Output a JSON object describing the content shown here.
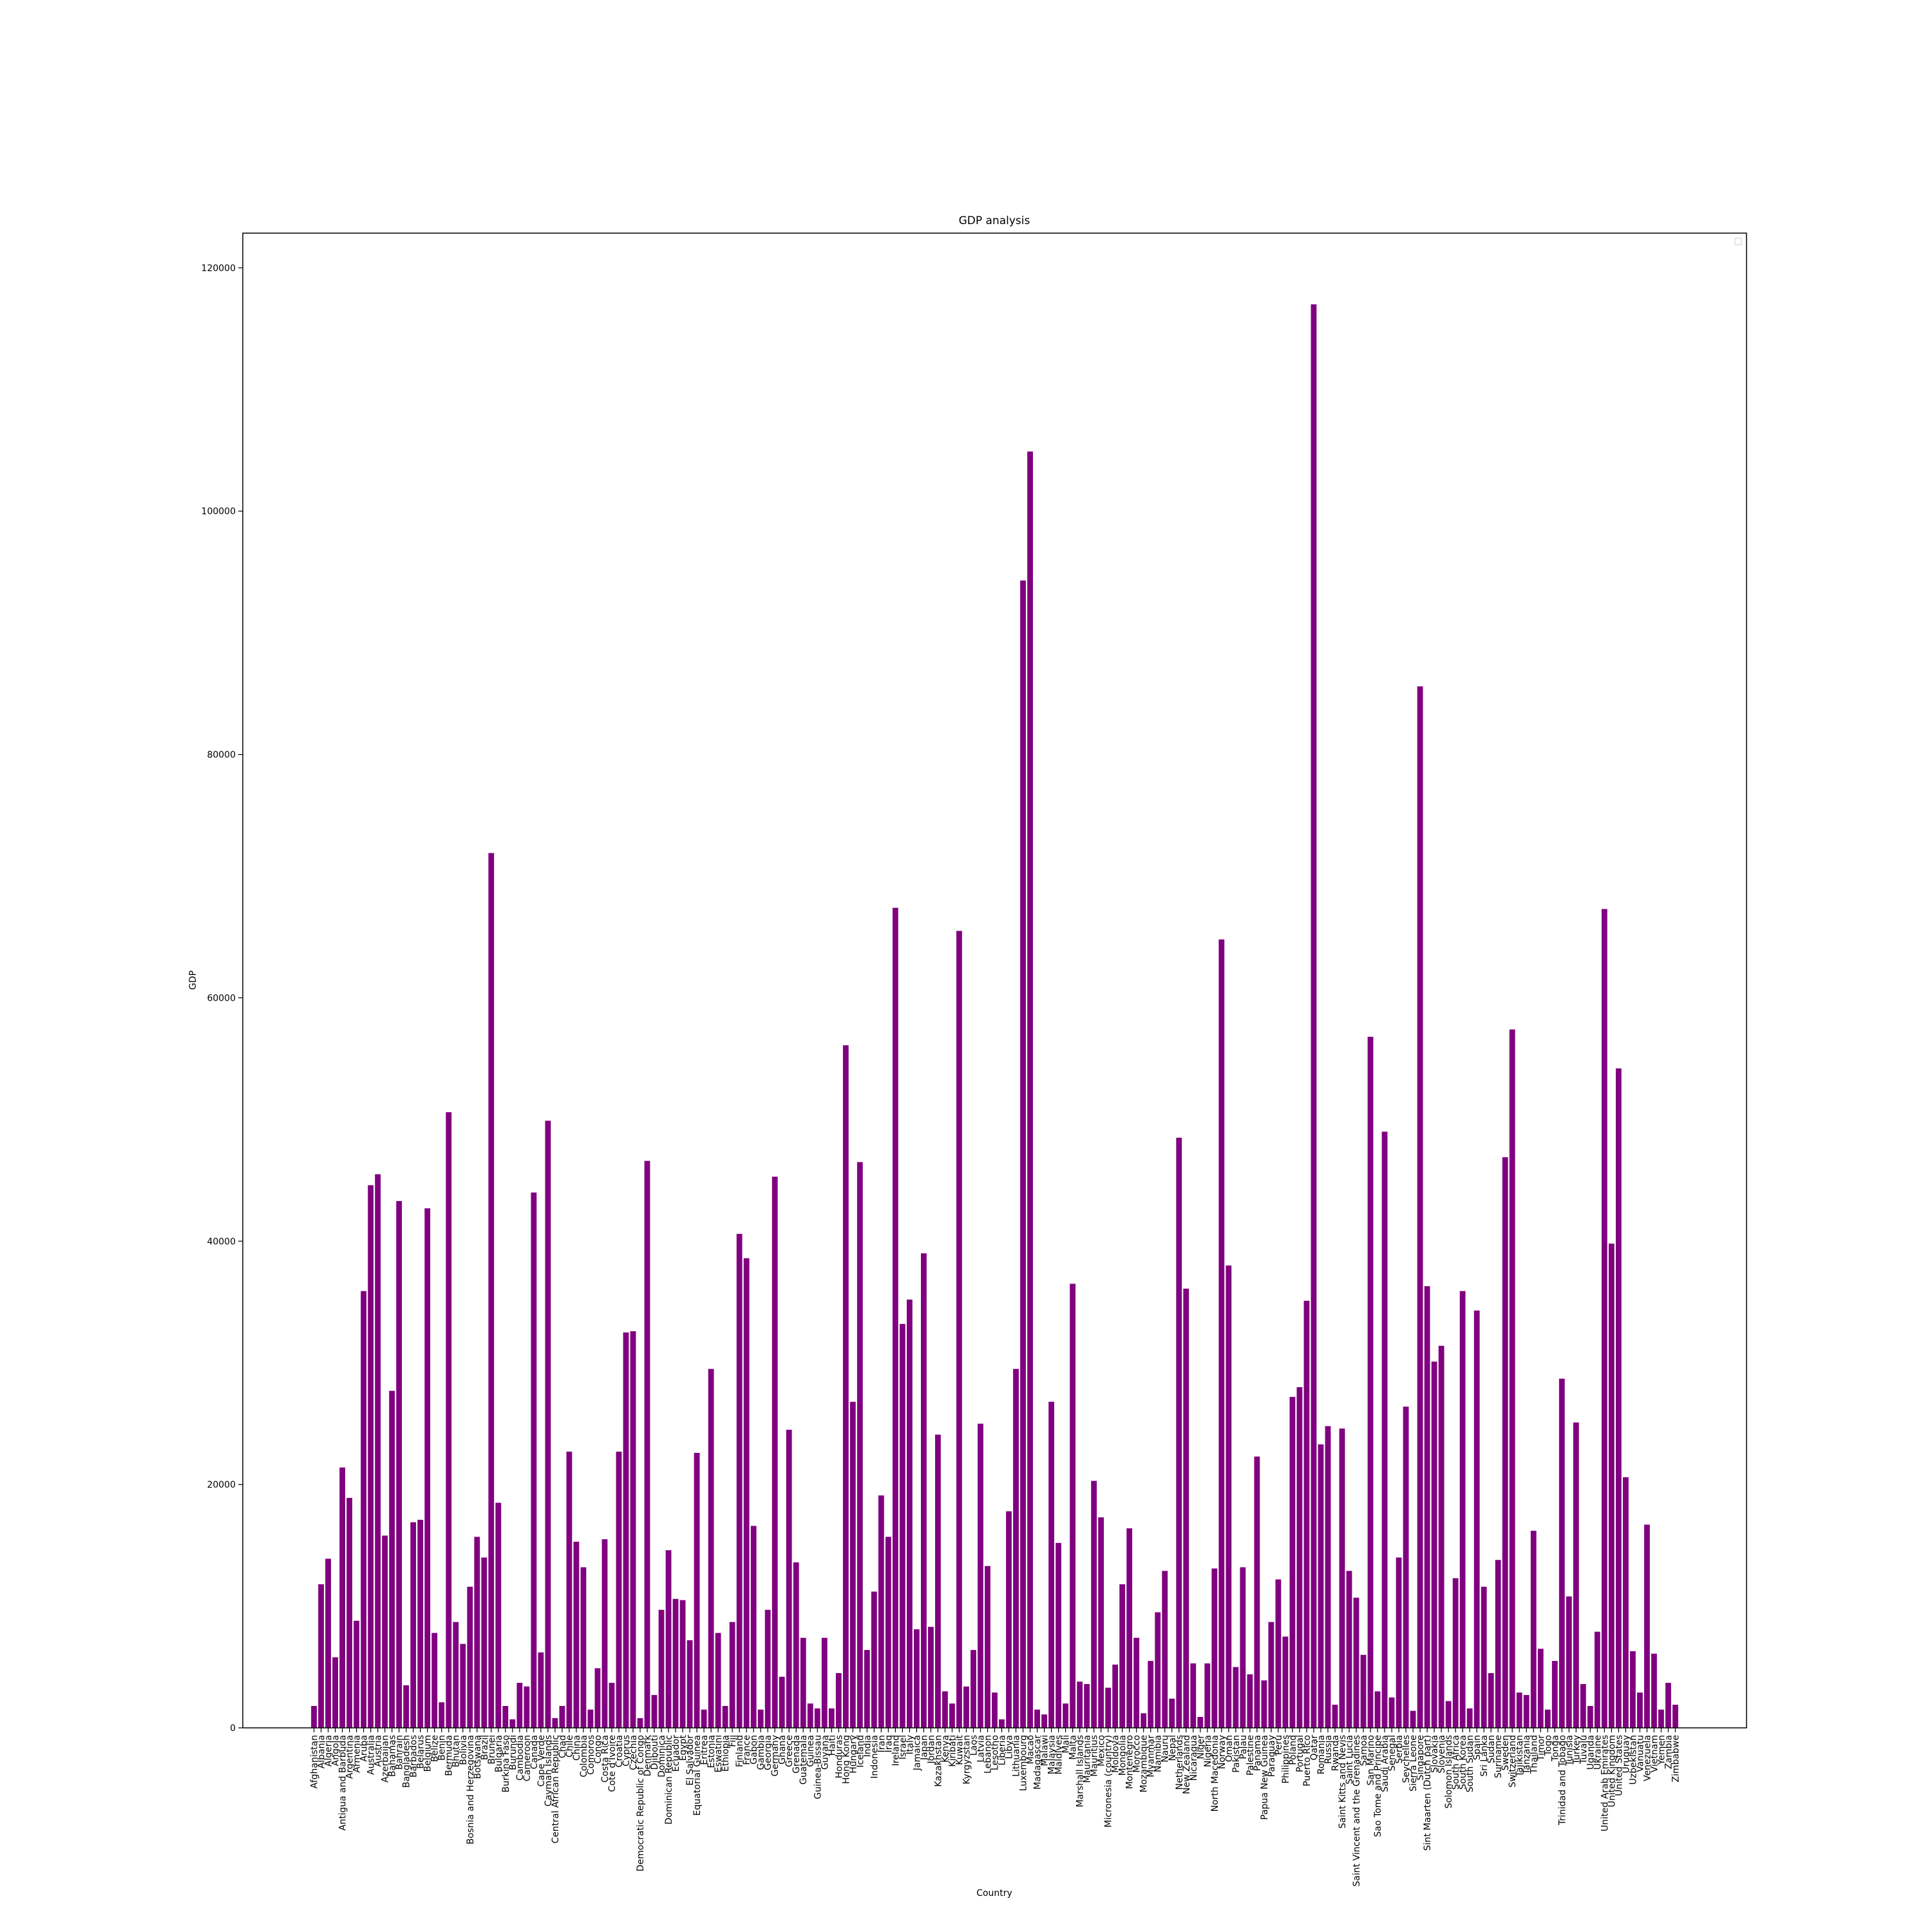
{
  "chart_data": {
    "type": "bar",
    "title": "GDP analysis",
    "xlabel": "Country",
    "ylabel": "GDP",
    "color": "#800080",
    "categories": [
      "Afghanistan",
      "Albania",
      "Algeria",
      "Angola",
      "Antigua and Barbuda",
      "Argentina",
      "Armenia",
      "Aruba",
      "Australia",
      "Austria",
      "Azerbaijan",
      "Bahamas",
      "Bahrain",
      "Bangladesh",
      "Barbados",
      "Belarus",
      "Belgium",
      "Belize",
      "Benin",
      "Bermuda",
      "Bhutan",
      "Bolivia",
      "Bosnia and Herzegovina",
      "Botswana",
      "Brazil",
      "Brunei",
      "Bulgaria",
      "Burkina Faso",
      "Burundi",
      "Cambodia",
      "Cameroon",
      "Canada",
      "Cape Verde",
      "Cayman Islands",
      "Central African Republic",
      "Chad",
      "Chile",
      "China",
      "Colombia",
      "Comoros",
      "Congo",
      "Costa Rica",
      "Cote d'Ivoire",
      "Croatia",
      "Cyprus",
      "Czechia",
      "Democratic Republic of Congo",
      "Denmark",
      "Djibouti",
      "Dominica",
      "Dominican Republic",
      "Ecuador",
      "Egypt",
      "El Salvador",
      "Equatorial Guinea",
      "Eritrea",
      "Estonia",
      "Eswatini",
      "Ethiopia",
      "Fiji",
      "Finland",
      "France",
      "Gabon",
      "Gambia",
      "Georgia",
      "Germany",
      "Ghana",
      "Greece",
      "Grenada",
      "Guatemala",
      "Guinea",
      "Guinea-Bissau",
      "Guyana",
      "Haiti",
      "Honduras",
      "Hong Kong",
      "Hungary",
      "Iceland",
      "India",
      "Indonesia",
      "Iran",
      "Iraq",
      "Ireland",
      "Israel",
      "Italy",
      "Jamaica",
      "Japan",
      "Jordan",
      "Kazakhstan",
      "Kenya",
      "Kiribati",
      "Kuwait",
      "Kyrgyzstan",
      "Laos",
      "Latvia",
      "Lebanon",
      "Lesotho",
      "Liberia",
      "Libya",
      "Lithuania",
      "Luxembourg",
      "Macao",
      "Madagascar",
      "Malawi",
      "Malaysia",
      "Maldives",
      "Mali",
      "Malta",
      "Marshall Islands",
      "Mauritania",
      "Mauritius",
      "Mexico",
      "Micronesia (country)",
      "Moldova",
      "Mongolia",
      "Montenegro",
      "Morocco",
      "Mozambique",
      "Myanmar",
      "Namibia",
      "Nauru",
      "Nepal",
      "Netherlands",
      "New Zealand",
      "Nicaragua",
      "Niger",
      "Nigeria",
      "North Macedonia",
      "Norway",
      "Oman",
      "Pakistan",
      "Palau",
      "Palestine",
      "Panama",
      "Papua New Guinea",
      "Paraguay",
      "Peru",
      "Philippines",
      "Poland",
      "Portugal",
      "Puerto Rico",
      "Qatar",
      "Romania",
      "Russia",
      "Rwanda",
      "Saint Kitts and Nevis",
      "Saint Lucia",
      "Saint Vincent and the Grenadines",
      "Samoa",
      "San Marino",
      "Sao Tome and Principe",
      "Saudi Arabia",
      "Senegal",
      "Serbia",
      "Seychelles",
      "Sierra Leone",
      "Singapore",
      "Sint Maarten (Dutch part)",
      "Slovakia",
      "Slovenia",
      "Solomon Islands",
      "South Africa",
      "South Korea",
      "South Sudan",
      "Spain",
      "Sri Lanka",
      "Sudan",
      "Suriname",
      "Sweden",
      "Switzerland",
      "Tajikistan",
      "Tanzania",
      "Thailand",
      "Timor",
      "Togo",
      "Tonga",
      "Trinidad and Tobago",
      "Tunisia",
      "Turkey",
      "Tuvalu",
      "Uganda",
      "Ukraine",
      "United Arab Emirates",
      "United Kingdom",
      "United States",
      "Uruguay",
      "Uzbekistan",
      "Vanuatu",
      "Venezuela",
      "Vietnam",
      "Yemen",
      "Zambia",
      "Zimbabwe"
    ],
    "values": [
      1800,
      11800,
      13900,
      5800,
      21400,
      18900,
      8800,
      35900,
      44600,
      45500,
      15800,
      27700,
      43300,
      3500,
      16900,
      17100,
      42700,
      7800,
      2100,
      50600,
      8700,
      6900,
      11600,
      15700,
      14000,
      71900,
      18500,
      1800,
      700,
      3700,
      3400,
      44000,
      6200,
      49900,
      800,
      1800,
      22700,
      15300,
      13200,
      1500,
      4900,
      15500,
      3700,
      22700,
      32500,
      32600,
      800,
      46600,
      2700,
      9700,
      14600,
      10600,
      10500,
      7200,
      22600,
      1500,
      29500,
      7800,
      1800,
      8700,
      40600,
      38600,
      16600,
      1500,
      9700,
      45300,
      4200,
      24500,
      13600,
      7400,
      2000,
      1600,
      7400,
      1600,
      4500,
      56100,
      26800,
      46500,
      6400,
      11200,
      19100,
      15700,
      67400,
      33200,
      35200,
      8100,
      39000,
      8300,
      24100,
      3000,
      2000,
      65500,
      3400,
      6400,
      25000,
      13300,
      2900,
      700,
      17800,
      29500,
      94300,
      104900,
      1500,
      1100,
      26800,
      15200,
      2000,
      36500,
      3800,
      3600,
      20300,
      17300,
      3300,
      5200,
      11800,
      16400,
      7400,
      1200,
      5500,
      9500,
      12900,
      2400,
      48500,
      36100,
      5300,
      900,
      5300,
      13100,
      64800,
      38000,
      5000,
      13200,
      4400,
      22300,
      3900,
      8700,
      12200,
      7500,
      27200,
      28000,
      35100,
      117000,
      23300,
      24800,
      1900,
      24600,
      12900,
      10700,
      6000,
      56800,
      3000,
      49000,
      2500,
      14000,
      26400,
      1400,
      85600,
      36300,
      30100,
      31400,
      2200,
      12300,
      35900,
      1600,
      34300,
      11600,
      4500,
      13800,
      46900,
      57400,
      2900,
      2700,
      16200,
      6500,
      1500,
      5500,
      28700,
      10800,
      25100,
      3600,
      1800,
      7900,
      67300,
      39800,
      54200,
      20600,
      6300,
      2900,
      16700,
      6100,
      1500,
      3700,
      1900
    ],
    "ylim": [
      0,
      122850
    ],
    "yticks": [
      0,
      20000,
      40000,
      60000,
      80000,
      100000,
      120000
    ]
  }
}
